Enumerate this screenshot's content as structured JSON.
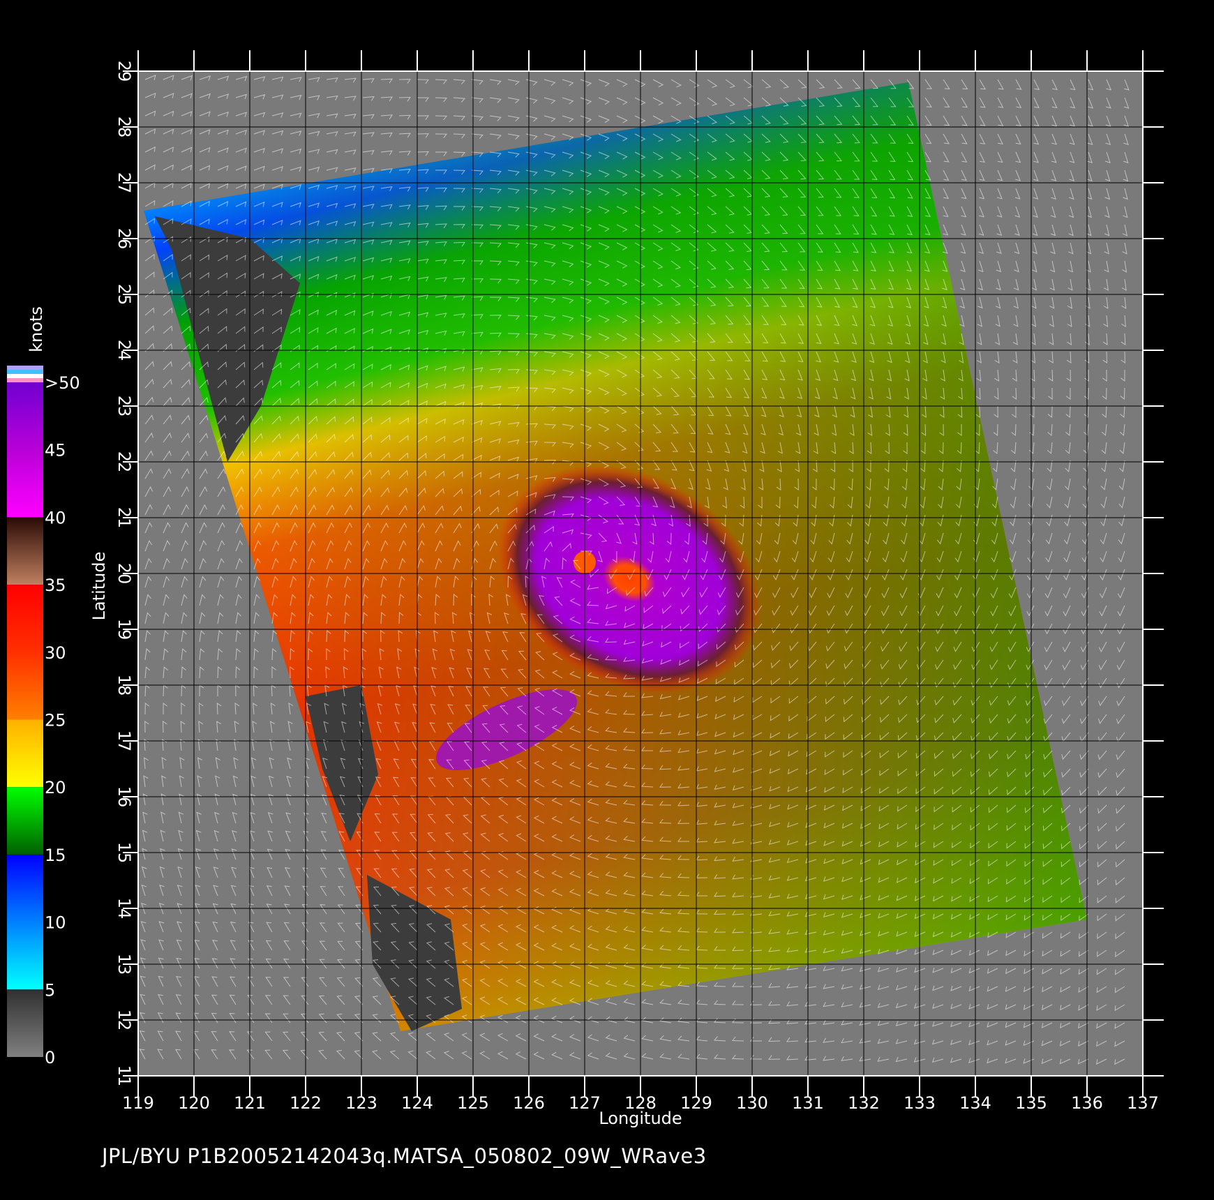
{
  "map": {
    "xlabel": "Longitude",
    "ylabel": "Latitude",
    "lon_range": [
      119,
      137
    ],
    "lat_range": [
      11,
      29
    ],
    "lon_ticks": [
      119,
      120,
      121,
      122,
      123,
      124,
      125,
      126,
      127,
      128,
      129,
      130,
      131,
      132,
      133,
      134,
      135,
      136,
      137
    ],
    "lat_ticks": [
      11,
      12,
      13,
      14,
      15,
      16,
      17,
      18,
      19,
      20,
      21,
      22,
      23,
      24,
      25,
      26,
      27,
      28,
      29
    ],
    "storm_center": {
      "lon": 127.0,
      "lat": 20.2
    },
    "swath_corners": [
      [
        119.1,
        26.5
      ],
      [
        132.8,
        28.8
      ],
      [
        136.0,
        13.8
      ],
      [
        123.7,
        11.8
      ]
    ],
    "land_color": "#3c3c3c",
    "background_color": "#7a7a7a"
  },
  "colorbar": {
    "unit": "knots",
    "labels": [
      ">50",
      "45",
      "40",
      "35",
      "30",
      "25",
      "20",
      "15",
      "10",
      "5",
      "0"
    ],
    "segments": [
      {
        "from": 50,
        "to": 40,
        "colors": [
          "#7000d0",
          "#b800d8",
          "#ff00ff"
        ]
      },
      {
        "from": 40,
        "to": 35,
        "colors": [
          "#2a0a05",
          "#c08060"
        ]
      },
      {
        "from": 35,
        "to": 25,
        "colors": [
          "#ff0000",
          "#ff3000",
          "#ff8000"
        ]
      },
      {
        "from": 25,
        "to": 20,
        "colors": [
          "#ffb000",
          "#ffff00"
        ]
      },
      {
        "from": 20,
        "to": 15,
        "colors": [
          "#00ff00",
          "#006000"
        ]
      },
      {
        "from": 15,
        "to": 5,
        "colors": [
          "#0000ff",
          "#0080ff",
          "#00ffff"
        ]
      },
      {
        "from": 5,
        "to": 0,
        "colors": [
          "#303030",
          "#808080"
        ]
      }
    ]
  },
  "footer": "JPL/BYU  P1B20052142043q.MATSA_050802_09W_WRave3"
}
